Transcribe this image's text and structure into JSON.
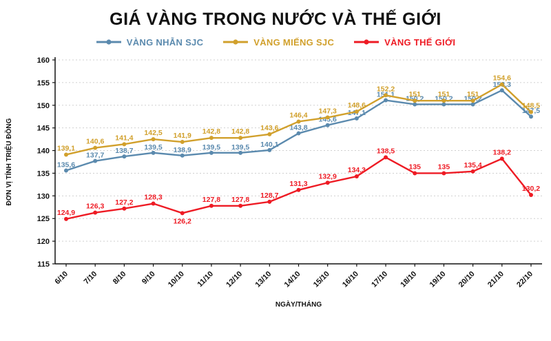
{
  "chart_data": {
    "type": "line",
    "title": "GIÁ VÀNG TRONG NƯỚC VÀ THẾ GIỚI",
    "xlabel": "NGÀY/THÁNG",
    "ylabel": "ĐƠN VỊ TÍNH TRIỆU ĐỒNG",
    "ylim": [
      115,
      160
    ],
    "ytick_step": 5,
    "grid": true,
    "legend_position": "top",
    "axis_color": "#111111",
    "grid_color": "#cfcfcf",
    "categories": [
      "6/10",
      "7/10",
      "8/10",
      "9/10",
      "10/10",
      "11/10",
      "12/10",
      "13/10",
      "14/10",
      "15/10",
      "16/10",
      "17/10",
      "18/10",
      "19/10",
      "20/10",
      "21/10",
      "22/10"
    ],
    "series": [
      {
        "id": "vang-nhan-sjc",
        "name": "VÀNG NHẪN SJC",
        "color": "#5b8aae",
        "values": [
          135.6,
          137.7,
          138.7,
          139.5,
          138.9,
          139.5,
          139.5,
          140.1,
          143.8,
          145.6,
          147.1,
          151.1,
          150.2,
          150.2,
          150.2,
          153.3,
          147.5
        ],
        "labels": [
          "135,6",
          "137,7",
          "138,7",
          "139,5",
          "138,9",
          "139,5",
          "139,5",
          "140,1",
          "143,8",
          "145,6",
          "147,1",
          "151,1",
          "150,2",
          "150,2",
          "150,2",
          "153,3",
          "147,5"
        ]
      },
      {
        "id": "vang-mieng-sjc",
        "name": "VÀNG MIẾNG SJC",
        "color": "#d1a02c",
        "values": [
          139.1,
          140.6,
          141.4,
          142.5,
          141.9,
          142.8,
          142.8,
          143.6,
          146.4,
          147.3,
          148.6,
          152.2,
          151,
          151,
          151,
          154.6,
          148.5
        ],
        "labels": [
          "139,1",
          "140,6",
          "141,4",
          "142,5",
          "141,9",
          "142,8",
          "142,8",
          "143,6",
          "146,4",
          "147,3",
          "148,6",
          "152,2",
          "151",
          "151",
          "151",
          "154,6",
          "148,5"
        ]
      },
      {
        "id": "vang-the-gioi",
        "name": "VÀNG THẾ GIỚI",
        "color": "#ee1b24",
        "values": [
          124.9,
          126.3,
          127.2,
          128.3,
          126.2,
          127.8,
          127.8,
          128.7,
          131.3,
          132.9,
          134.3,
          138.5,
          135,
          135,
          135.4,
          138.2,
          130.2
        ],
        "labels": [
          "124,9",
          "126,3",
          "127,2",
          "128,3",
          "126,2",
          "127,8",
          "127,8",
          "128,7",
          "131,3",
          "132,9",
          "134,3",
          "138,5",
          "135",
          "135",
          "135,4",
          "138,2",
          "130,2"
        ]
      }
    ]
  }
}
